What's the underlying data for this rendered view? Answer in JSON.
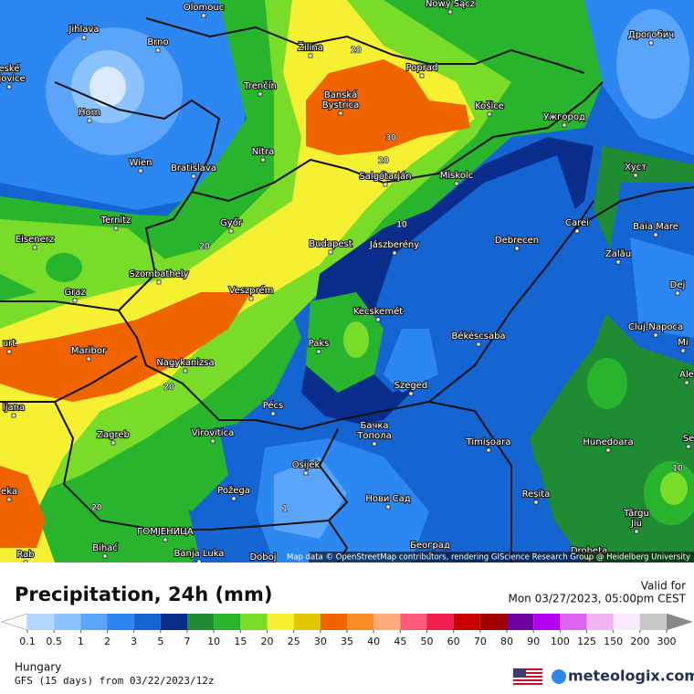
{
  "header": {
    "title": "Precipitation, 24h (mm)",
    "valid_label": "Valid for",
    "valid_time": "Mon 03/27/2023, 05:00pm CEST"
  },
  "map": {
    "cities": [
      [
        "Olomouc"
      ],
      [
        "Nowy Sącz"
      ],
      [
        "Jihlava"
      ],
      [
        "Brno"
      ],
      [
        "Žilina"
      ],
      [
        "Poprad"
      ],
      [
        "Дрогобич"
      ],
      [
        "eské",
        "ějovice"
      ],
      [
        "Banská",
        "Bystrica"
      ],
      [
        "Trenčín"
      ],
      [
        "Košice"
      ],
      [
        "Ужгород"
      ],
      [
        "Horn"
      ],
      [
        "Wien"
      ],
      [
        "Bratislava"
      ],
      [
        "Nitra"
      ],
      [
        "Salgótarján"
      ],
      [
        "Miskolc"
      ],
      [
        "Хуст"
      ],
      [
        "Ternitz"
      ],
      [
        "Győr"
      ],
      [
        "Carei"
      ],
      [
        "Baia Mare"
      ],
      [
        "Eisenerz"
      ],
      [
        "Budapest"
      ],
      [
        "Jászberény"
      ],
      [
        "Debrecen"
      ],
      [
        "Szombathely"
      ],
      [
        "Veszprém"
      ],
      [
        "Graz"
      ],
      [
        "Zalău"
      ],
      [
        "Dej"
      ],
      [
        "Kecskemét"
      ],
      [
        "Cluj-Napoca"
      ],
      [
        "urt"
      ],
      [
        "Maribor"
      ],
      [
        "Paks"
      ],
      [
        "Békéscsaba"
      ],
      [
        "Nagykanizsa"
      ],
      [
        "Mi"
      ],
      [
        "Ale"
      ],
      [
        "Szeged"
      ],
      [
        "ljana"
      ],
      [
        "Pécs"
      ],
      [
        "Zagreb"
      ],
      [
        "Virovitica"
      ],
      [
        "Бачка",
        "Топола"
      ],
      [
        "Timișoara"
      ],
      [
        "Hunedoara"
      ],
      [
        "Se"
      ],
      [
        "Osijek"
      ],
      [
        "Požega"
      ],
      [
        "Reșita"
      ],
      [
        "Нови Сад"
      ],
      [
        "eka"
      ],
      [
        "Târgu",
        "Jiu"
      ],
      [
        "ГОМЈЕНИЦА"
      ],
      [
        "Bihać"
      ],
      [
        "Banja Luka"
      ],
      [
        "Doboj"
      ],
      [
        "Београд"
      ],
      [
        "Drobeta"
      ],
      [
        "Rab"
      ]
    ],
    "contour_labels": [
      20,
      30,
      20,
      10,
      20,
      20,
      1,
      20,
      10
    ],
    "attribution": "Map data © OpenStreetMap contributors, rendering GIScience Research Group @ Heidelberg University"
  },
  "legend": {
    "ticks": [
      0.1,
      0.5,
      1,
      2,
      3,
      5,
      7,
      10,
      15,
      20,
      25,
      30,
      35,
      40,
      45,
      50,
      60,
      70,
      80,
      90,
      100,
      125,
      150,
      200,
      300
    ],
    "colors": [
      "#b4d7ff",
      "#8cc3ff",
      "#5aa5fa",
      "#2d87f0",
      "#1464d2",
      "#0a2d8c",
      "#1e8c32",
      "#28b42d",
      "#78dc28",
      "#f5f032",
      "#e1c800",
      "#f06400",
      "#fa8c28",
      "#ffaa78",
      "#ff5a78",
      "#f01e50",
      "#c80000",
      "#a00000",
      "#6e00a0",
      "#b400f0",
      "#dc64f0",
      "#f0b4f5",
      "#faeaff",
      "#c8c8c8"
    ]
  },
  "footer": {
    "region": "Hungary",
    "model_run": "GFS (15 days) from  03/22/2023/12z",
    "brand": "meteologix.com"
  }
}
